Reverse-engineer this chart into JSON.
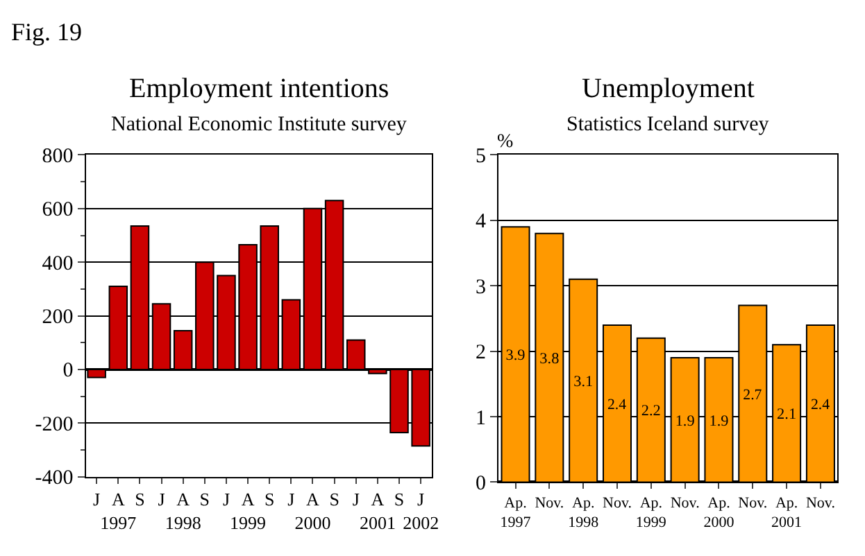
{
  "chart_data": [
    {
      "type": "bar",
      "title": "Employment intentions",
      "subtitle": "National Economic Institute survey",
      "annotations": [
        "Fig. 19"
      ],
      "categories": [
        "J",
        "A\n1997",
        "S",
        "J",
        "A\n1998",
        "S",
        "J",
        "A\n1999",
        "S",
        "J",
        "A\n2000",
        "S",
        "J",
        "A\n2001",
        "S",
        "J\n2002"
      ],
      "values": [
        -30,
        310,
        535,
        245,
        145,
        400,
        350,
        465,
        535,
        260,
        600,
        630,
        110,
        -15,
        -235,
        -285
      ],
      "color": "#cc0000",
      "ylim": [
        -400,
        800
      ],
      "yticks": [
        -400,
        -200,
        0,
        200,
        400,
        600,
        800
      ],
      "grid": "y"
    },
    {
      "type": "bar",
      "title": "Unemployment",
      "subtitle": "Statistics Iceland survey",
      "ylabel": "%",
      "categories": [
        "Ap.\n1997",
        "Nov.",
        "Ap.\n1998",
        "Nov.",
        "Ap.\n1999",
        "Nov.",
        "Ap.\n2000",
        "Nov.",
        "Ap.\n2001",
        "Nov."
      ],
      "values": [
        3.9,
        3.8,
        3.1,
        2.4,
        2.2,
        1.9,
        1.9,
        2.7,
        2.1,
        2.4
      ],
      "color": "#ff9900",
      "ylim": [
        0,
        5
      ],
      "yticks": [
        0,
        1,
        2,
        3,
        4,
        5
      ],
      "grid": "y",
      "data_labels": true
    }
  ]
}
